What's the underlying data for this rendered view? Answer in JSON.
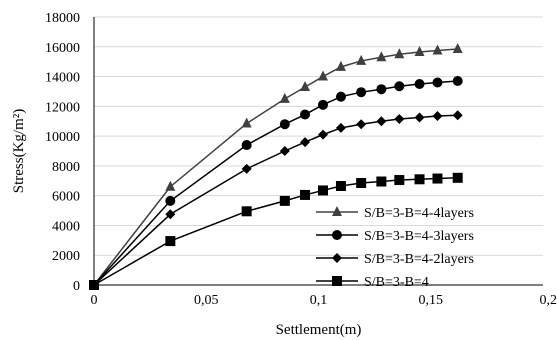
{
  "chart_data": {
    "type": "line",
    "xlabel": "Settlement(m)",
    "ylabel": "Stress(Kg/m²)",
    "xlim": [
      0,
      0.2
    ],
    "ylim": [
      0,
      18000
    ],
    "x_ticks": [
      0,
      0.05,
      0.1,
      0.15,
      0.2
    ],
    "x_tick_labels": [
      "0",
      "0,05",
      "0,1",
      "0,15",
      "0,2"
    ],
    "y_ticks": [
      0,
      2000,
      4000,
      6000,
      8000,
      10000,
      12000,
      14000,
      16000,
      18000
    ],
    "y_tick_labels": [
      "0",
      "2000",
      "4000",
      "6000",
      "8000",
      "10000",
      "12000",
      "14000",
      "16000",
      "18000"
    ],
    "grid": "horizontal",
    "legend_position": "bottom-right",
    "series": [
      {
        "name": "S/B=3-B=4-4layers",
        "marker": "triangle",
        "color": "#404040",
        "x": [
          0,
          0.034,
          0.068,
          0.085,
          0.094,
          0.102,
          0.11,
          0.119,
          0.128,
          0.136,
          0.145,
          0.153,
          0.162
        ],
        "y": [
          0,
          6600,
          10850,
          12500,
          13300,
          14000,
          14650,
          15050,
          15300,
          15500,
          15650,
          15750,
          15850
        ]
      },
      {
        "name": "S/B=3-B=4-3layers",
        "marker": "circle",
        "color": "#000000",
        "x": [
          0,
          0.034,
          0.068,
          0.085,
          0.094,
          0.102,
          0.11,
          0.119,
          0.128,
          0.136,
          0.145,
          0.153,
          0.162
        ],
        "y": [
          0,
          5650,
          9400,
          10800,
          11450,
          12100,
          12650,
          12950,
          13150,
          13350,
          13500,
          13600,
          13700
        ]
      },
      {
        "name": "S/B=3-B=4-2layers",
        "marker": "diamond",
        "color": "#000000",
        "x": [
          0,
          0.034,
          0.068,
          0.085,
          0.094,
          0.102,
          0.11,
          0.119,
          0.128,
          0.136,
          0.145,
          0.153,
          0.162
        ],
        "y": [
          0,
          4750,
          7800,
          9000,
          9600,
          10100,
          10550,
          10800,
          11000,
          11150,
          11250,
          11350,
          11400
        ]
      },
      {
        "name": "S/B=3-B=4",
        "marker": "square",
        "color": "#000000",
        "x": [
          0,
          0.034,
          0.068,
          0.085,
          0.094,
          0.102,
          0.11,
          0.119,
          0.128,
          0.136,
          0.145,
          0.153,
          0.162
        ],
        "y": [
          0,
          2950,
          4950,
          5650,
          6050,
          6350,
          6650,
          6850,
          6950,
          7050,
          7100,
          7150,
          7200
        ]
      }
    ]
  }
}
